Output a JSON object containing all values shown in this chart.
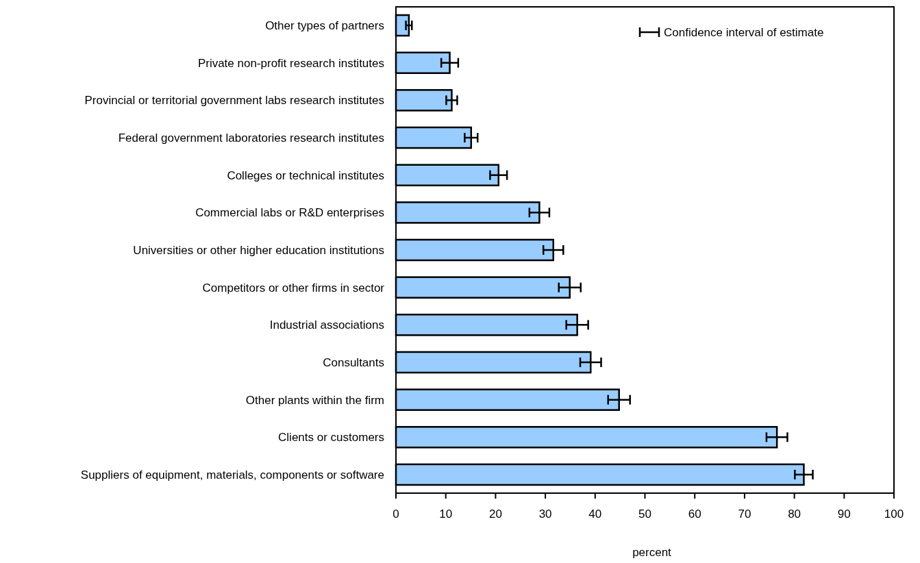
{
  "chart_data": {
    "type": "bar",
    "orientation": "horizontal",
    "xlabel": "percent",
    "categories": [
      "Other types of partners",
      "Private non-profit research institutes",
      "Provincial or territorial government labs research institutes",
      "Federal government laboratories research institutes",
      "Colleges or technical institutes",
      "Commercial labs or R&D enterprises",
      "Universities or other higher education institutions",
      "Competitors or other firms in sector",
      "Industrial associations",
      "Consultants",
      "Other plants within the firm",
      "Clients or customers",
      "Suppliers of equipment, materials, components or software"
    ],
    "values": [
      2.6,
      10.8,
      11.2,
      15.1,
      20.6,
      28.8,
      31.6,
      34.9,
      36.4,
      39.1,
      44.8,
      76.5,
      81.9
    ],
    "errors": [
      0.6,
      1.7,
      1.1,
      1.3,
      1.7,
      2.0,
      2.0,
      2.2,
      2.2,
      2.1,
      2.2,
      2.1,
      1.8
    ],
    "color": "#99ccff",
    "xlim": [
      0,
      100
    ],
    "xticks": [
      0,
      10,
      20,
      30,
      40,
      50,
      60,
      70,
      80,
      90,
      100
    ],
    "grid": false,
    "annotations": [
      "Confidence interval of estimate"
    ]
  }
}
